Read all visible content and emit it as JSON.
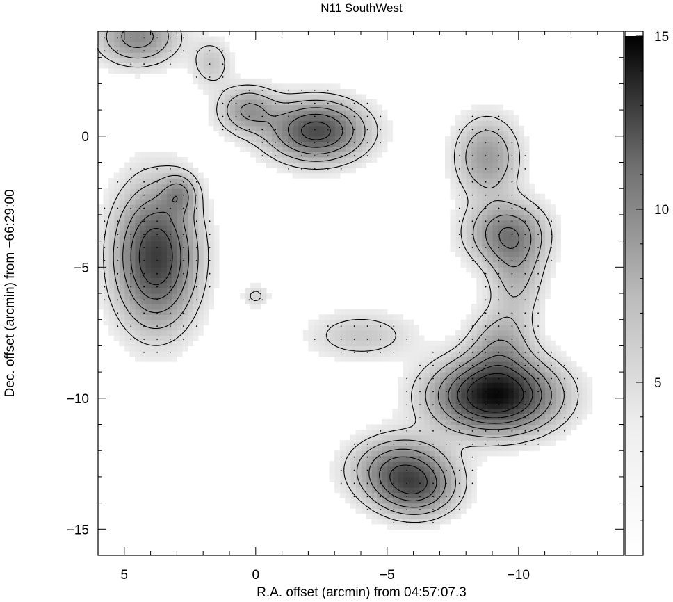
{
  "chart_data": {
    "type": "heatmap",
    "title": "N11 SouthWest",
    "xlabel": "R.A. offset (arcmin) from 04:57:07.3",
    "ylabel": "Dec. offset (arcmin) from −66:29:00",
    "xlim": [
      6.0,
      -14.0
    ],
    "ylim": [
      -16.0,
      4.0
    ],
    "x_axis_reversed": true,
    "grid": false,
    "colormap": "greyscale (white = low, black = high)",
    "x_ticks": [
      {
        "value": 5,
        "label": "5"
      },
      {
        "value": 0,
        "label": "0"
      },
      {
        "value": -5,
        "label": "−5"
      },
      {
        "value": -10,
        "label": "−10"
      }
    ],
    "y_ticks": [
      {
        "value": 0,
        "label": "0"
      },
      {
        "value": -5,
        "label": "−5"
      },
      {
        "value": -10,
        "label": "−10"
      },
      {
        "value": -15,
        "label": "−15"
      }
    ],
    "colorbar": {
      "range": [
        0,
        15
      ],
      "ticks": [
        {
          "value": 15,
          "label": "15"
        },
        {
          "value": 10,
          "label": "10"
        },
        {
          "value": 5,
          "label": "5"
        }
      ]
    },
    "sources": [
      {
        "x": 4.5,
        "y": 3.8,
        "peak": 6,
        "rx": 1.0,
        "ry": 0.7
      },
      {
        "x": 3.8,
        "y": -4.6,
        "peak": 11,
        "rx": 1.0,
        "ry": 1.7
      },
      {
        "x": 2.9,
        "y": -2.2,
        "peak": 4,
        "rx": 0.45,
        "ry": 0.5
      },
      {
        "x": 1.7,
        "y": 2.8,
        "peak": 2.5,
        "rx": 0.5,
        "ry": 0.6
      },
      {
        "x": 0.3,
        "y": 1.0,
        "peak": 5,
        "rx": 0.75,
        "ry": 0.6
      },
      {
        "x": -2.3,
        "y": 0.2,
        "peak": 10,
        "rx": 1.2,
        "ry": 0.75
      },
      {
        "x": 0.0,
        "y": -6.1,
        "peak": 1.8,
        "rx": 0.35,
        "ry": 0.3
      },
      {
        "x": -8.8,
        "y": -0.8,
        "peak": 5,
        "rx": 0.8,
        "ry": 1.0
      },
      {
        "x": -9.5,
        "y": -3.7,
        "peak": 6,
        "rx": 1.0,
        "ry": 0.8
      },
      {
        "x": -9.9,
        "y": -5.2,
        "peak": 3.5,
        "rx": 0.7,
        "ry": 1.2
      },
      {
        "x": -4.0,
        "y": -7.6,
        "peak": 2.5,
        "rx": 1.3,
        "ry": 0.6
      },
      {
        "x": -9.1,
        "y": -9.9,
        "peak": 14,
        "rx": 1.5,
        "ry": 0.9
      },
      {
        "x": -9.3,
        "y": -8.0,
        "peak": 4,
        "rx": 0.8,
        "ry": 0.9
      },
      {
        "x": -5.5,
        "y": -12.7,
        "peak": 7,
        "rx": 1.2,
        "ry": 0.8
      },
      {
        "x": -6.1,
        "y": -13.5,
        "peak": 6,
        "rx": 1.0,
        "ry": 0.7
      }
    ],
    "contour_levels": [
      1.5,
      3,
      5,
      7,
      9,
      11
    ]
  }
}
